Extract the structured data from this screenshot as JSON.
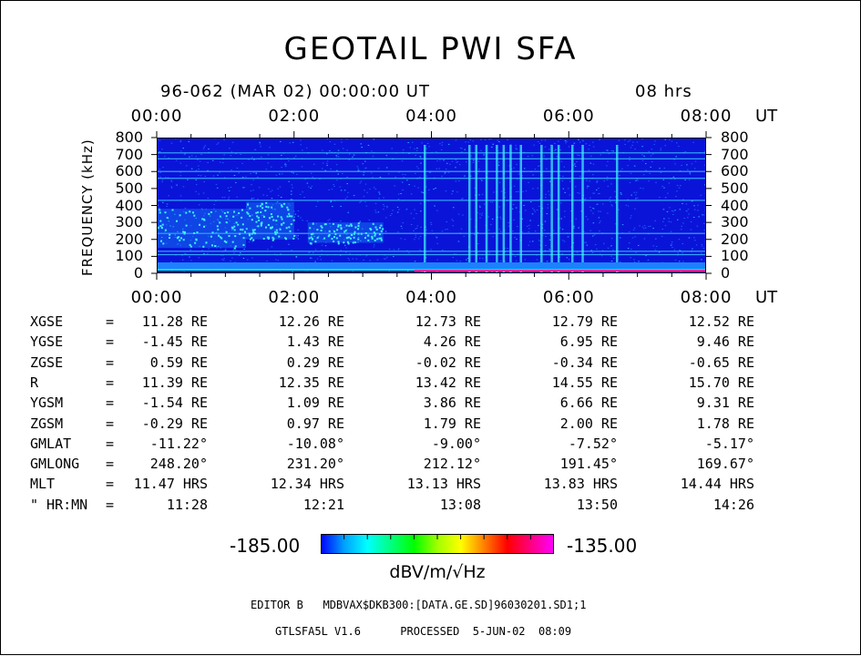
{
  "title": "GEOTAIL PWI SFA",
  "subtitle": "96-062 (MAR 02) 00:00:00 UT",
  "duration": "08 hrs",
  "time_axis": {
    "ticks": [
      "00:00",
      "02:00",
      "04:00",
      "06:00",
      "08:00"
    ],
    "unit": "UT"
  },
  "freq_axis": {
    "label": "FREQUENCY (kHz)",
    "ticks": [
      "800",
      "700",
      "600",
      "500",
      "400",
      "300",
      "200",
      "100",
      "0"
    ]
  },
  "colorbar": {
    "min": "-185.00",
    "max": "-135.00",
    "unit": "dBV/m/√Hz",
    "colors": [
      "#0000ff",
      "#00a0ff",
      "#00ffff",
      "#00ff80",
      "#00ff00",
      "#a0ff00",
      "#ffff00",
      "#ff8000",
      "#ff0000",
      "#ff0080",
      "#ff00ff"
    ]
  },
  "chart_data": {
    "type": "heatmap",
    "title": "GEOTAIL PWI SFA",
    "xlabel": "UT",
    "ylabel": "FREQUENCY (kHz)",
    "xlim": [
      0,
      8
    ],
    "ylim": [
      0,
      800
    ],
    "x_ticks": [
      "00:00",
      "02:00",
      "04:00",
      "06:00",
      "08:00"
    ],
    "y_ticks": [
      0,
      100,
      200,
      300,
      400,
      500,
      600,
      700,
      800
    ],
    "zlim": [
      -185.0,
      -135.0
    ],
    "zlabel": "dBV/m/√Hz",
    "emission_lines_khz": [
      35,
      110,
      130,
      235,
      430,
      560,
      600,
      675,
      710
    ],
    "bursts": [
      {
        "t_start": 0.0,
        "t_end": 1.3,
        "f_low": 150,
        "f_high": 380
      },
      {
        "t_start": 1.3,
        "t_end": 2.0,
        "f_low": 200,
        "f_high": 420
      },
      {
        "t_start": 2.2,
        "t_end": 3.3,
        "f_low": 180,
        "f_high": 300
      }
    ],
    "vertical_events_hours": [
      3.9,
      4.55,
      4.65,
      4.8,
      4.95,
      5.05,
      5.15,
      5.3,
      5.6,
      5.75,
      5.85,
      6.05,
      6.2,
      6.7
    ]
  },
  "orbit_rows": [
    {
      "label": "XGSE",
      "sep": "=",
      "values": [
        "11.28 RE",
        "12.26 RE",
        "12.73 RE",
        "12.79 RE",
        "12.52 RE"
      ]
    },
    {
      "label": "YGSE",
      "sep": "=",
      "values": [
        "-1.45 RE",
        "1.43 RE",
        "4.26 RE",
        "6.95 RE",
        "9.46 RE"
      ]
    },
    {
      "label": "ZGSE",
      "sep": "=",
      "values": [
        "0.59 RE",
        "0.29 RE",
        "-0.02 RE",
        "-0.34 RE",
        "-0.65 RE"
      ]
    },
    {
      "label": "R",
      "sep": "=",
      "values": [
        "11.39 RE",
        "12.35 RE",
        "13.42 RE",
        "14.55 RE",
        "15.70 RE"
      ]
    },
    {
      "label": "YGSM",
      "sep": "=",
      "values": [
        "-1.54 RE",
        "1.09 RE",
        "3.86 RE",
        "6.66 RE",
        "9.31 RE"
      ]
    },
    {
      "label": "ZGSM",
      "sep": "=",
      "values": [
        "-0.29 RE",
        "0.97 RE",
        "1.79 RE",
        "2.00 RE",
        "1.78 RE"
      ]
    },
    {
      "label": "GMLAT",
      "sep": "=",
      "values": [
        "-11.22°",
        "-10.08°",
        "-9.00°",
        "-7.52°",
        "-5.17°"
      ]
    },
    {
      "label": "GMLONG",
      "sep": "=",
      "values": [
        "248.20°",
        "231.20°",
        "212.12°",
        "191.45°",
        "169.67°"
      ]
    },
    {
      "label": "MLT",
      "sep": "=",
      "values": [
        "11.47 HRS",
        "12.34 HRS",
        "13.13 HRS",
        "13.83 HRS",
        "14.44 HRS"
      ]
    },
    {
      "label": "\" HR:MN",
      "sep": "=",
      "values": [
        "11:28",
        "12:21",
        "13:08",
        "13:50",
        "14:26"
      ]
    }
  ],
  "footer": {
    "line1": "EDITOR B   MDBVAX$DKB300:[DATA.GE.SD]96030201.SD1;1",
    "line2": "GTLSFA5L V1.6      PROCESSED  5-JUN-02  08:09"
  }
}
